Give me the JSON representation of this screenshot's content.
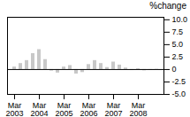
{
  "chart_data": {
    "type": "bar",
    "title": "%change",
    "categories": [
      "Mar\n2003",
      null,
      null,
      null,
      "Mar\n2004",
      null,
      null,
      null,
      "Mar\n2005",
      null,
      null,
      null,
      "Mar\n2006",
      null,
      null,
      null,
      "Mar\n2007",
      null,
      null,
      null,
      "Mar\n2008",
      null,
      null,
      null
    ],
    "values": [
      0.5,
      1.2,
      1.8,
      3.2,
      4.0,
      2.0,
      -0.3,
      -0.7,
      0.5,
      0.8,
      -0.9,
      -0.6,
      1.0,
      1.8,
      1.2,
      0.4,
      1.5,
      0.9,
      0.3,
      -0.2,
      0.15,
      -0.25,
      -0.15,
      0.05
    ],
    "color": "#c8c8c8",
    "ylim": [
      -5.0,
      10.5
    ],
    "yticks": [
      {
        "value": -5.0,
        "label": "-5.0"
      },
      -2.5,
      0,
      2.5,
      {
        "value": 5.0,
        "label": "5.0"
      },
      7.5,
      {
        "value": 10.0,
        "label": "10.0"
      }
    ]
  }
}
